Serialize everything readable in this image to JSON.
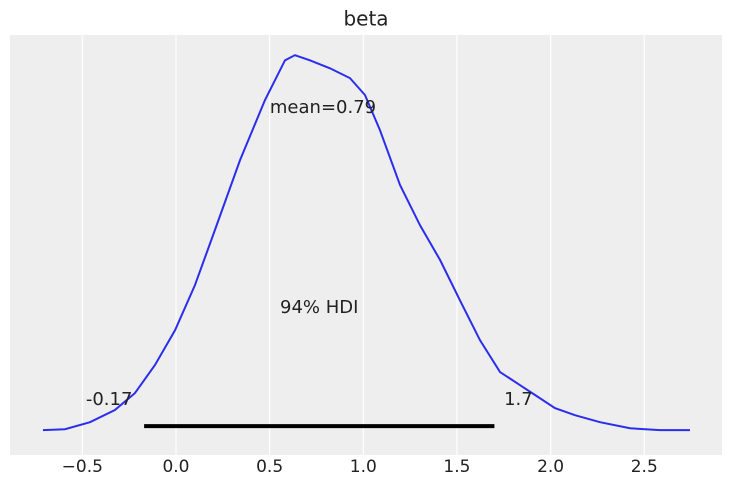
{
  "chart_data": {
    "type": "density",
    "title": "beta",
    "x": [
      -0.71,
      -0.593,
      -0.459,
      -0.326,
      -0.219,
      -0.112,
      -0.005,
      0.101,
      0.208,
      0.342,
      0.475,
      0.582,
      0.635,
      0.715,
      0.822,
      0.929,
      1.009,
      1.089,
      1.196,
      1.303,
      1.41,
      1.516,
      1.623,
      1.73,
      1.837,
      1.917,
      2.023,
      2.13,
      2.264,
      2.424,
      2.584,
      2.744
    ],
    "values": [
      0.0,
      0.002,
      0.017,
      0.043,
      0.079,
      0.139,
      0.213,
      0.309,
      0.427,
      0.576,
      0.704,
      0.789,
      0.8,
      0.789,
      0.772,
      0.751,
      0.715,
      0.64,
      0.523,
      0.437,
      0.363,
      0.277,
      0.192,
      0.124,
      0.096,
      0.075,
      0.047,
      0.032,
      0.017,
      0.004,
      0.0,
      0.0
    ],
    "color": "#2a2eec",
    "mean_label": "mean=0.79",
    "hdi_label": "94% HDI",
    "hdi": [
      -0.17,
      1.7
    ],
    "xlim": [
      -0.886,
      2.915
    ],
    "ylim": [
      -0.053,
      0.843
    ],
    "xticks": [
      {
        "value": -0.5,
        "label": "−0.5"
      },
      {
        "value": 0,
        "label": "0.0"
      },
      {
        "value": 0.5,
        "label": "0.5"
      },
      {
        "value": 1,
        "label": "1.0"
      },
      {
        "value": 1.5,
        "label": "1.5"
      },
      {
        "value": 2,
        "label": "2.0"
      },
      {
        "value": 2.5,
        "label": "2.5"
      }
    ],
    "grid": true
  }
}
